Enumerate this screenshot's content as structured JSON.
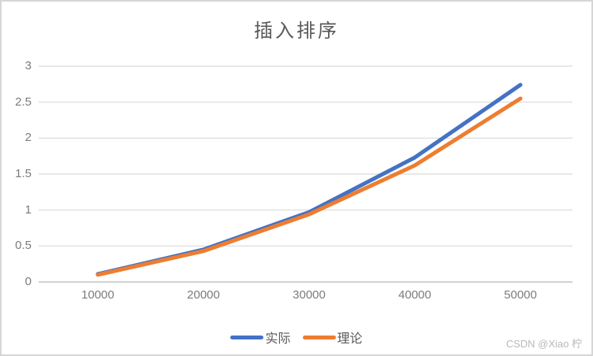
{
  "chart_data": {
    "type": "line",
    "title": "插入排序",
    "categories": [
      "10000",
      "20000",
      "30000",
      "40000",
      "50000"
    ],
    "series": [
      {
        "name": "实际",
        "color": "#4472C4",
        "values": [
          0.11,
          0.45,
          0.97,
          1.73,
          2.74
        ]
      },
      {
        "name": "理论",
        "color": "#ED7D31",
        "values": [
          0.1,
          0.43,
          0.94,
          1.62,
          2.55
        ]
      }
    ],
    "xlabel": "",
    "ylabel": "",
    "ylim": [
      0,
      3
    ],
    "ytick_step": 0.5,
    "yticks": [
      "3",
      "2.5",
      "2",
      "1.5",
      "1",
      "0.5",
      "0"
    ],
    "grid": true,
    "legend_position": "bottom"
  },
  "colors": {
    "gridline": "#D9D9D9",
    "axis_line": "#C3C3C3",
    "axis_text": "#7B7B7B",
    "title_text": "#595959",
    "border": "#D6D6D6",
    "watermark_text": "#B9B9B9"
  },
  "watermark": "CSDN @Xiao 柠"
}
